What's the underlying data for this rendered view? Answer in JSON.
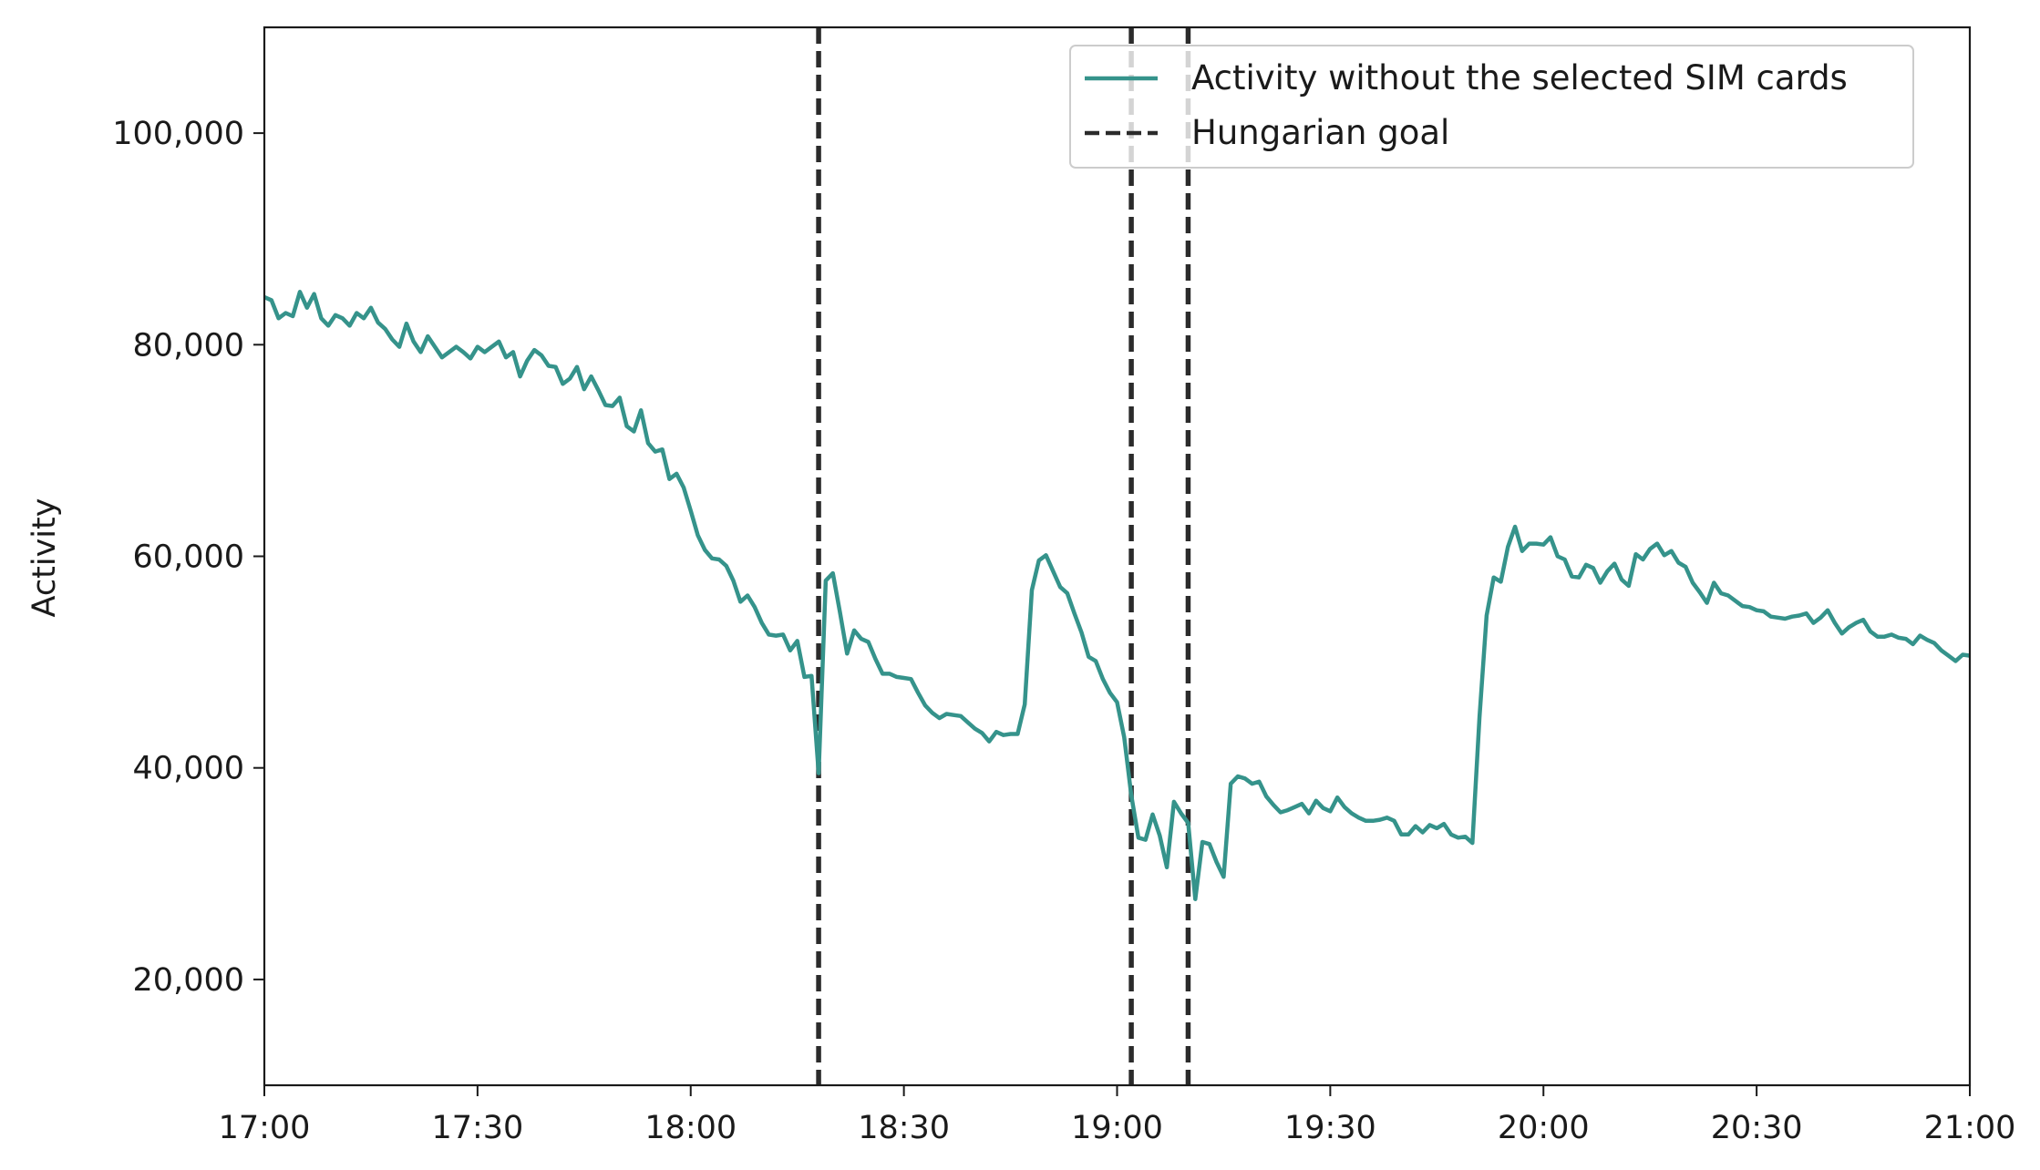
{
  "chart_data": {
    "type": "line",
    "title": "",
    "xlabel": "",
    "ylabel": "Activity",
    "xlim": [
      "17:00",
      "21:00"
    ],
    "ylim": [
      10000,
      110000
    ],
    "x_ticks": [
      "17:00",
      "17:30",
      "18:00",
      "18:30",
      "19:00",
      "19:30",
      "20:00",
      "20:30",
      "21:00"
    ],
    "y_ticks": [
      20000,
      40000,
      60000,
      80000,
      100000
    ],
    "y_tick_labels": [
      "20,000",
      "40,000",
      "60,000",
      "80,000",
      "100,000"
    ],
    "grid": false,
    "legend_position": "top-right",
    "series": [
      {
        "name": "Activity without the selected SIM cards",
        "color": "#35938b",
        "style": "solid",
        "x": [
          "17:00",
          "17:01",
          "17:02",
          "17:03",
          "17:04",
          "17:05",
          "17:06",
          "17:07",
          "17:08",
          "17:09",
          "17:10",
          "17:11",
          "17:12",
          "17:13",
          "17:14",
          "17:15",
          "17:16",
          "17:17",
          "17:18",
          "17:19",
          "17:20",
          "17:21",
          "17:22",
          "17:23",
          "17:24",
          "17:25",
          "17:26",
          "17:27",
          "17:28",
          "17:29",
          "17:30",
          "17:31",
          "17:32",
          "17:33",
          "17:34",
          "17:35",
          "17:36",
          "17:37",
          "17:38",
          "17:39",
          "17:40",
          "17:41",
          "17:42",
          "17:43",
          "17:44",
          "17:45",
          "17:46",
          "17:47",
          "17:48",
          "17:49",
          "17:50",
          "17:51",
          "17:52",
          "17:53",
          "17:54",
          "17:55",
          "17:56",
          "17:57",
          "17:58",
          "17:59",
          "18:00",
          "18:01",
          "18:02",
          "18:03",
          "18:04",
          "18:05",
          "18:06",
          "18:07",
          "18:08",
          "18:09",
          "18:10",
          "18:11",
          "18:12",
          "18:13",
          "18:14",
          "18:15",
          "18:16",
          "18:17",
          "18:18",
          "18:19",
          "18:20",
          "18:21",
          "18:22",
          "18:23",
          "18:24",
          "18:25",
          "18:26",
          "18:27",
          "18:28",
          "18:29",
          "18:30",
          "18:31",
          "18:32",
          "18:33",
          "18:34",
          "18:35",
          "18:36",
          "18:37",
          "18:38",
          "18:39",
          "18:40",
          "18:41",
          "18:42",
          "18:43",
          "18:44",
          "18:45",
          "18:46",
          "18:47",
          "18:48",
          "18:49",
          "18:50",
          "18:51",
          "18:52",
          "18:53",
          "18:54",
          "18:55",
          "18:56",
          "18:57",
          "18:58",
          "18:59",
          "19:00",
          "19:01",
          "19:02",
          "19:03",
          "19:04",
          "19:05",
          "19:06",
          "19:07",
          "19:08",
          "19:09",
          "19:10",
          "19:11",
          "19:12",
          "19:13",
          "19:14",
          "19:15",
          "19:16",
          "19:17",
          "19:18",
          "19:19",
          "19:20",
          "19:21",
          "19:22",
          "19:23",
          "19:24",
          "19:25",
          "19:26",
          "19:27",
          "19:28",
          "19:29",
          "19:30",
          "19:31",
          "19:32",
          "19:33",
          "19:34",
          "19:35",
          "19:36",
          "19:37",
          "19:38",
          "19:39",
          "19:40",
          "19:41",
          "19:42",
          "19:43",
          "19:44",
          "19:45",
          "19:46",
          "19:47",
          "19:48",
          "19:49",
          "19:50",
          "19:51",
          "19:52",
          "19:53",
          "19:54",
          "19:55",
          "19:56",
          "19:57",
          "19:58",
          "19:59",
          "20:00",
          "20:01",
          "20:02",
          "20:03",
          "20:04",
          "20:05",
          "20:06",
          "20:07",
          "20:08",
          "20:09",
          "20:10",
          "20:11",
          "20:12",
          "20:13",
          "20:14",
          "20:15",
          "20:16",
          "20:17",
          "20:18",
          "20:19",
          "20:20",
          "20:21",
          "20:22",
          "20:23",
          "20:24",
          "20:25",
          "20:26",
          "20:27",
          "20:28",
          "20:29",
          "20:30",
          "20:31",
          "20:32",
          "20:33",
          "20:34",
          "20:35",
          "20:36",
          "20:37",
          "20:38",
          "20:39",
          "20:40",
          "20:41",
          "20:42",
          "20:43",
          "20:44",
          "20:45",
          "20:46",
          "20:47",
          "20:48",
          "20:49",
          "20:50",
          "20:51",
          "20:52",
          "20:53",
          "20:54",
          "20:55",
          "20:56",
          "20:57",
          "20:58",
          "20:59",
          "21:00"
        ],
        "values": [
          84500,
          84200,
          82500,
          83000,
          82700,
          85000,
          83500,
          84800,
          82500,
          81800,
          82800,
          82500,
          81800,
          83000,
          82500,
          83500,
          82100,
          81500,
          80500,
          79800,
          82000,
          80300,
          79300,
          80800,
          79800,
          78800,
          79300,
          79800,
          79300,
          78700,
          79800,
          79300,
          79800,
          80300,
          78800,
          79300,
          77000,
          78500,
          79500,
          79000,
          78000,
          77900,
          76300,
          76800,
          77900,
          75800,
          77000,
          75700,
          74300,
          74200,
          75000,
          72300,
          71800,
          73800,
          70700,
          69900,
          70100,
          67300,
          67800,
          66500,
          64300,
          62000,
          60600,
          59800,
          59700,
          59100,
          57700,
          55700,
          56300,
          55200,
          53700,
          52600,
          52500,
          52600,
          51100,
          52000,
          48600,
          48700,
          39500,
          57700,
          58400,
          54700,
          50800,
          53000,
          52200,
          51900,
          50300,
          48900,
          48900,
          48600,
          48500,
          48400,
          47100,
          45900,
          45200,
          44700,
          45100,
          45000,
          44900,
          44300,
          43700,
          43300,
          42500,
          43400,
          43100,
          43200,
          43200,
          46000,
          56800,
          59600,
          60100,
          58600,
          57100,
          56500,
          54600,
          52800,
          50500,
          50100,
          48400,
          47100,
          46200,
          42900,
          37400,
          33400,
          33200,
          35600,
          33600,
          30600,
          36800,
          35700,
          34800,
          27600,
          33000,
          32800,
          31100,
          29700,
          38500,
          39200,
          39000,
          38500,
          38700,
          37300,
          36500,
          35800,
          36000,
          36300,
          36600,
          35700,
          36900,
          36200,
          35900,
          37200,
          36300,
          35700,
          35300,
          35000,
          35000,
          35100,
          35300,
          35000,
          33700,
          33700,
          34500,
          33900,
          34600,
          34300,
          34700,
          33700,
          33400,
          33500,
          32900,
          44800,
          54400,
          58000,
          57600,
          60900,
          62800,
          60500,
          61200,
          61200,
          61100,
          61800,
          60000,
          59700,
          58100,
          58000,
          59200,
          58900,
          57500,
          58600,
          59300,
          57800,
          57200,
          60200,
          59700,
          60700,
          61200,
          60100,
          60500,
          59400,
          59000,
          57500,
          56600,
          55600,
          57500,
          56500,
          56300,
          55800,
          55300,
          55200,
          54900,
          54800,
          54300,
          54200,
          54100,
          54300,
          54400,
          54600,
          53700,
          54200,
          54900,
          53700,
          52700,
          53300,
          53700,
          54000,
          52900,
          52400,
          52400,
          52600,
          52300,
          52200,
          51700,
          52500,
          52100,
          51800,
          51100,
          50600,
          50100,
          50700,
          50600
        ]
      },
      {
        "name": "Hungarian goal",
        "color": "#2b2b2b",
        "style": "dashed",
        "x_positions": [
          "18:18",
          "19:02",
          "19:10"
        ]
      }
    ]
  }
}
